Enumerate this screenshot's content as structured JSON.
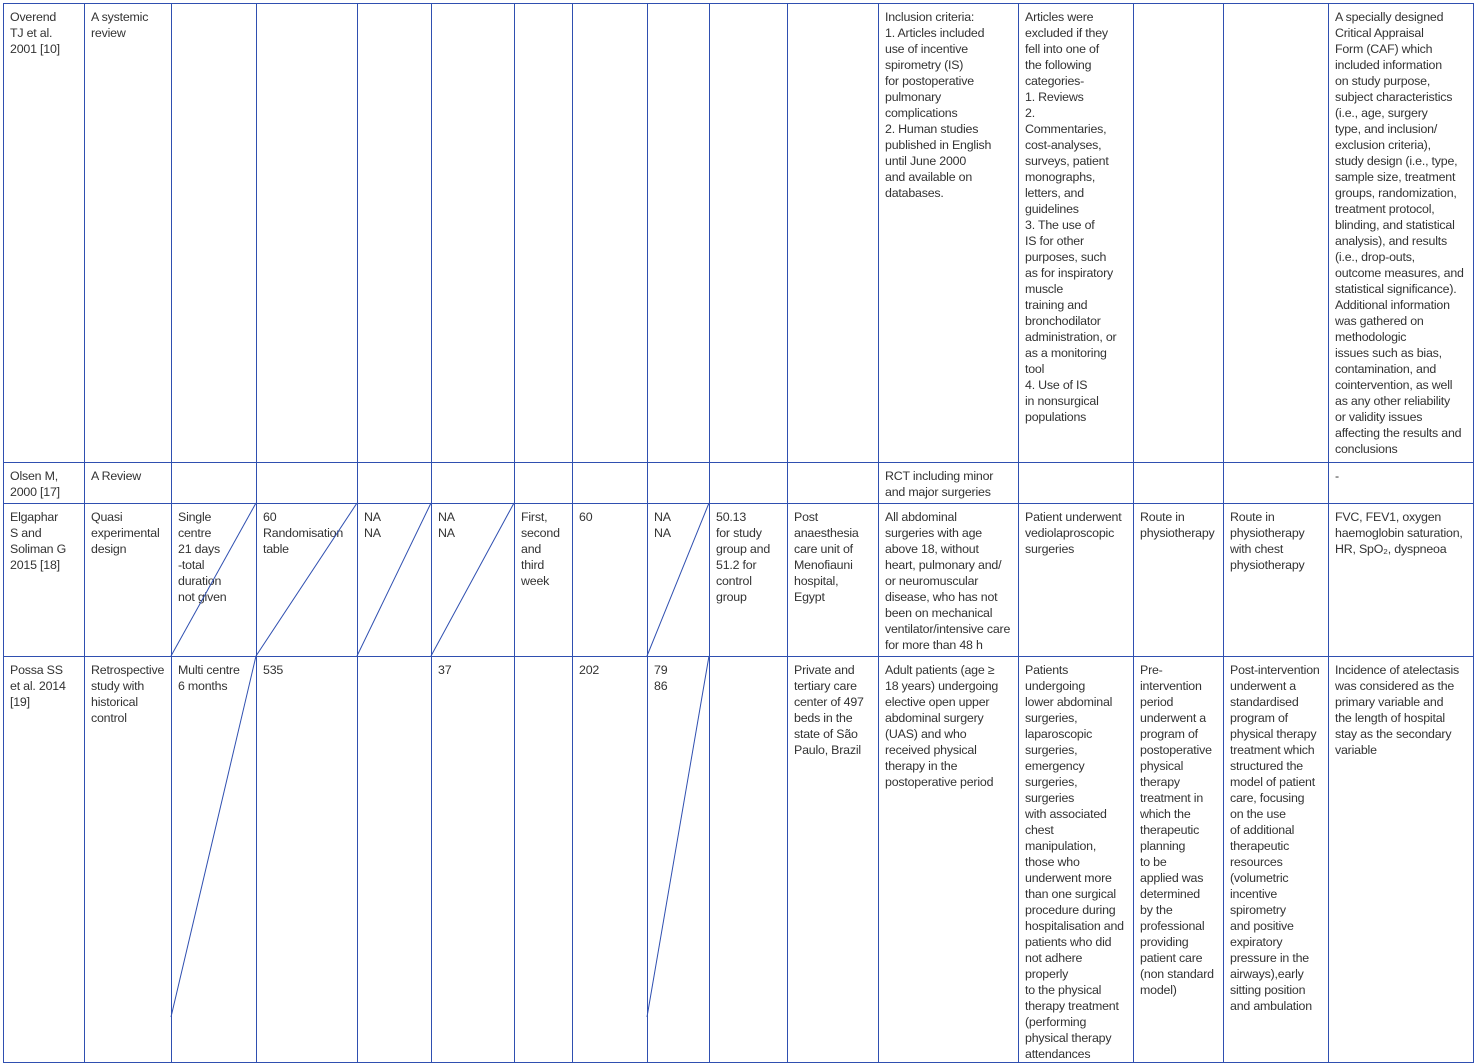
{
  "rows": [
    {
      "cells": [
        "Overend\nTJ et al.\n2001 [10]",
        "A systemic\nreview",
        "",
        "",
        "",
        "",
        "",
        "",
        "",
        "",
        "",
        " Inclusion criteria:\n1. Articles included\nuse of incentive\nspirometry (IS)\nfor postoperative\npulmonary\ncomplications\n2. Human studies\npublished in English\nuntil June 2000\nand available on\ndatabases.",
        "Articles were\nexcluded if they\nfell into one of\nthe following\ncategories-\n1. Reviews\n2.\nCommentaries,\ncost-analyses,\nsurveys, patient\nmonographs,\nletters, and\nguidelines\n3. The use of\nIS for other\npurposes, such\nas for inspiratory\nmuscle\ntraining and\nbronchodilator\nadministration, or\nas a monitoring\ntool\n4. Use of IS\nin nonsurgical\npopulations",
        "",
        "",
        " A specially designed\nCritical Appraisal\nForm (CAF) which\nincluded information\non study purpose,\nsubject characteristics\n(i.e., age, surgery\ntype, and inclusion/\nexclusion criteria),\nstudy design (i.e., type,\nsample size, treatment\ngroups, randomization,\ntreatment protocol,\nblinding, and statistical\nanalysis), and results\n(i.e., drop-outs,\noutcome measures, and\nstatistical significance).\nAdditional information\nwas gathered on\nmethodologic\nissues such as bias,\ncontamination, and\ncointervention, as well\nas any other reliability\nor validity issues\naffecting the results and\nconclusions"
      ]
    },
    {
      "cells": [
        "Olsen M,\n2000 [17]",
        "A Review",
        "",
        "",
        "",
        "",
        "",
        "",
        "",
        "",
        "",
        "RCT including minor\nand major surgeries",
        "",
        "",
        "",
        "-"
      ]
    },
    {
      "cells": [
        "Elgaphar\nS and\nSoliman G\n2015 [18]",
        "Quasi\nexperimental\ndesign",
        "Single\ncentre\n21 days\n-total\nduration\nnot given",
        "60\nRandomisation\ntable",
        "NA\nNA",
        "NA\nNA",
        "First,\nsecond\nand\nthird\nweek",
        "60",
        "NA\nNA",
        "50.13\nfor study\ngroup and\n51.2 for\ncontrol\ngroup",
        "Post\nanaesthesia\ncare unit of\nMenofiauni\nhospital,\nEgypt",
        "All abdominal\nsurgeries with age\nabove 18, without\nheart, pulmonary and/\nor neuromuscular\ndisease, who has not\nbeen on mechanical\nventilator/intensive care\nfor more than 48 h",
        "Patient underwent\nvediolaproscopic\nsurgeries",
        "Route in\nphysiotherapy",
        "Route in\nphysiotherapy\nwith chest\nphysiotherapy",
        "FVC, FEV1, oxygen\nhaemoglobin saturation,\nHR, SpO₂, dyspneoa"
      ]
    },
    {
      "cells": [
        "Possa SS\net al. 2014\n[19]",
        "Retrospective\nstudy with\nhistorical\ncontrol",
        "Multi centre\n6 months",
        "535",
        "",
        "37",
        "",
        "202",
        "79\n86",
        "",
        "Private and\ntertiary care\ncenter of 497\nbeds in the\nstate of São\nPaulo, Brazil",
        "Adult patients (age ≥\n18 years) undergoing\nelective open upper\nabdominal surgery\n(UAS) and who\nreceived physical\ntherapy in the\npostoperative period",
        "Patients\nundergoing\nlower abdominal\nsurgeries,\nlaparoscopic\nsurgeries,\nemergency\nsurgeries, surgeries\nwith associated\nchest manipulation,\nthose who\nunderwent more\nthan one surgical\nprocedure during\nhospitalisation and\npatients who did\nnot adhere properly\nto the physical\ntherapy treatment\n(performing\nphysical therapy\nattendances",
        "Pre-\nintervention\nperiod\nunderwent a\nprogram of\npostoperative\nphysical\ntherapy\ntreatment in\nwhich the\ntherapeutic\nplanning\nto be\napplied was\ndetermined\nby the\nprofessional\nproviding\npatient care\n(non standard\nmodel)",
        "Post-intervention\nunderwent a\nstandardised\nprogram of\nphysical therapy\ntreatment which\nstructured the\nmodel of patient\ncare, focusing\non the use\nof additional\ntherapeutic\nresources\n(volumetric\nincentive\nspirometry\nand positive\nexpiratory\npressure in the\nairways),early\nsitting position\nand ambulation",
        "Incidence of atelectasis\nwas considered as the\nprimary variable and\nthe length of hospital\nstay as the secondary\nvariable"
      ]
    }
  ],
  "colors": {
    "border": "#2f4fb0",
    "text": "#333333"
  }
}
